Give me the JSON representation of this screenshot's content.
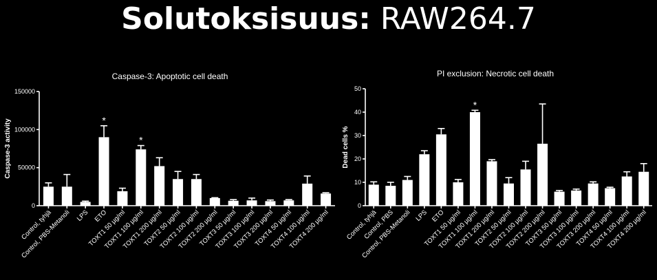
{
  "slide": {
    "title_bold": "Solutoksisuus:",
    "title_light": "RAW264.7"
  },
  "chart_data": [
    {
      "type": "bar",
      "title": "Caspase-3: Apoptotic cell death",
      "ylabel": "Caspase-3 activity",
      "xlabel": "",
      "ylim": [
        0,
        150000
      ],
      "yticks": [
        0,
        50000,
        100000,
        150000
      ],
      "categories": [
        "Control, tyhjä",
        "Control, PBS-Metanoli",
        "LPS",
        "ETO",
        "TOXT1 50 µg/ml",
        "TOXT1 100 µg/ml",
        "TOXT1 200 µg/ml",
        "TOXT2 50 µg/ml",
        "TOXT2 100 µg/ml",
        "TOXT2 200 µg/ml",
        "TOXT3 50 µg/ml",
        "TOXT3 100 µg/ml",
        "TOXT3 200 µg/ml",
        "TOXT4 50 µg/ml",
        "TOXT4 100 µg/ml",
        "TOXT4 200 µg/ml"
      ],
      "values": [
        25000,
        25000,
        5000,
        90000,
        19000,
        74000,
        52000,
        35000,
        35000,
        10000,
        6500,
        7000,
        6000,
        7000,
        29000,
        16000
      ],
      "errors": [
        5000,
        16000,
        1000,
        15000,
        4000,
        5000,
        11000,
        10000,
        6000,
        500,
        1500,
        3000,
        1500,
        1000,
        10000,
        1000
      ],
      "annotations": [
        "",
        "",
        "",
        "*",
        "",
        "*",
        "",
        "",
        "",
        "",
        "",
        "",
        "",
        "",
        "",
        ""
      ],
      "grid": false,
      "legend": "none"
    },
    {
      "type": "bar",
      "title": "PI exclusion: Necrotic cell death",
      "ylabel": "Dead cells %",
      "xlabel": "",
      "ylim": [
        0,
        50
      ],
      "yticks": [
        0,
        10,
        20,
        30,
        40,
        50
      ],
      "categories": [
        "Control, tyhjä",
        "Control, PBS",
        "Control, PBS-Metanoli",
        "LPS",
        "ETO",
        "TOXT1 50 µg/ml",
        "TOXT1 100 µg/ml",
        "TOXT1 200 µg/ml",
        "TOXT2 50 µg/ml",
        "TOXT2 100 µg/ml",
        "TOXT2 200 µg/ml",
        "TOXT3 50 µg/ml",
        "TOXT3 100 µg/ml",
        "TOXT3 200 µg/ml",
        "TOXT4 50 µg/ml",
        "TOXT4 100 µg/ml",
        "TOXT4 200 µg/ml"
      ],
      "values": [
        9,
        8.5,
        11,
        22,
        30.5,
        10,
        40,
        19,
        9.5,
        15.5,
        26.5,
        6,
        6.5,
        9.5,
        7.5,
        12.5,
        14.5
      ],
      "errors": [
        1.2,
        1.5,
        1.5,
        1.5,
        2.5,
        1.2,
        0.8,
        0.7,
        2.5,
        3.5,
        17,
        0.5,
        0.6,
        0.7,
        0.4,
        2,
        3.5
      ],
      "annotations": [
        "",
        "",
        "",
        "",
        "",
        "",
        "*",
        "",
        "",
        "",
        "",
        "",
        "",
        "",
        "",
        "",
        ""
      ],
      "grid": false,
      "legend": "none"
    }
  ]
}
